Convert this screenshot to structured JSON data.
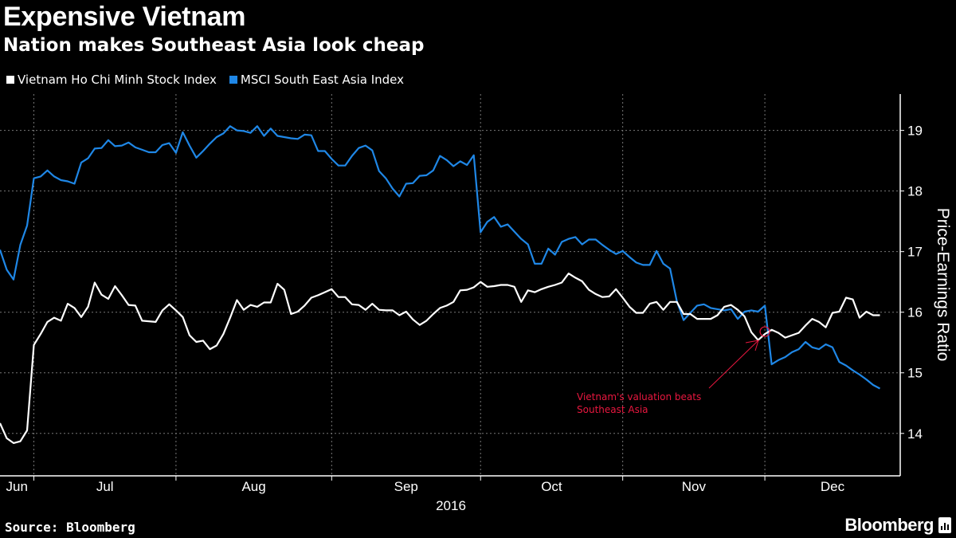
{
  "header": {
    "title": "Expensive Vietnam",
    "subtitle": "Nation makes Southeast Asia look cheap"
  },
  "footer": {
    "source": "Source: Bloomberg",
    "logo": "Bloomberg"
  },
  "colors": {
    "vietnam": "#ffffff",
    "msci": "#1f87e6",
    "annotation": "#e8173f",
    "grid": "#777777",
    "background": "#000000"
  },
  "chart_data": {
    "type": "line",
    "title": "Expensive Vietnam",
    "subtitle": "Nation makes Southeast Asia look cheap",
    "xlabel": "2016",
    "ylabel": "Price-Earnings Ratio",
    "x_unit": "trading day index",
    "xlim": [
      0,
      133
    ],
    "ylim": [
      13.3,
      19.6
    ],
    "y_axis_side": "right",
    "yticks": [
      14,
      15,
      16,
      17,
      18,
      19
    ],
    "month_boundaries": [
      5,
      26,
      49,
      71,
      92,
      113
    ],
    "month_labels": [
      "Jun",
      "Jul",
      "Aug",
      "Sep",
      "Oct",
      "Nov",
      "Dec"
    ],
    "grid": true,
    "legend_position": "top-left",
    "series": [
      {
        "name": "Vietnam Ho Chi Minh Stock Index",
        "color": "#ffffff",
        "values": [
          14.17,
          13.92,
          13.84,
          13.87,
          14.05,
          15.46,
          15.64,
          15.84,
          15.91,
          15.86,
          16.14,
          16.07,
          15.92,
          16.09,
          16.49,
          16.29,
          16.22,
          16.43,
          16.28,
          16.12,
          16.11,
          15.86,
          15.85,
          15.84,
          16.03,
          16.13,
          16.03,
          15.92,
          15.62,
          15.51,
          15.53,
          15.39,
          15.45,
          15.64,
          15.91,
          16.2,
          16.04,
          16.12,
          16.09,
          16.16,
          16.16,
          16.47,
          16.37,
          15.97,
          16.01,
          16.11,
          16.24,
          16.28,
          16.33,
          16.38,
          16.25,
          16.25,
          16.13,
          16.12,
          16.04,
          16.14,
          16.04,
          16.03,
          16.03,
          15.95,
          16.01,
          15.88,
          15.79,
          15.86,
          15.97,
          16.07,
          16.11,
          16.17,
          16.36,
          16.37,
          16.41,
          16.5,
          16.42,
          16.43,
          16.45,
          16.45,
          16.42,
          16.17,
          16.36,
          16.33,
          16.38,
          16.42,
          16.45,
          16.49,
          16.64,
          16.57,
          16.51,
          16.37,
          16.3,
          16.25,
          16.26,
          16.38,
          16.24,
          16.09,
          15.99,
          15.99,
          16.14,
          16.17,
          16.04,
          16.17,
          16.17,
          15.97,
          15.97,
          15.89,
          15.89,
          15.89,
          15.95,
          16.09,
          16.12,
          16.04,
          15.93,
          15.67,
          15.54,
          15.64,
          15.71,
          15.66,
          15.58,
          15.62,
          15.66,
          15.78,
          15.89,
          15.84,
          15.75,
          15.99,
          16.01,
          16.24,
          16.21,
          15.91,
          16.01,
          15.95,
          15.95
        ]
      },
      {
        "name": "MSCI South East Asia Index",
        "color": "#1f87e6",
        "values": [
          17.03,
          16.7,
          16.54,
          17.11,
          17.43,
          18.21,
          18.24,
          18.34,
          18.24,
          18.18,
          18.16,
          18.12,
          18.47,
          18.54,
          18.7,
          18.71,
          18.84,
          18.74,
          18.75,
          18.8,
          18.72,
          18.68,
          18.64,
          18.64,
          18.76,
          18.79,
          18.63,
          18.97,
          18.75,
          18.55,
          18.66,
          18.78,
          18.89,
          18.95,
          19.07,
          19.0,
          18.99,
          18.96,
          19.07,
          18.91,
          19.03,
          18.91,
          18.89,
          18.87,
          18.86,
          18.93,
          18.92,
          18.66,
          18.66,
          18.53,
          18.42,
          18.42,
          18.58,
          18.71,
          18.75,
          18.67,
          18.33,
          18.21,
          18.04,
          17.91,
          18.12,
          18.13,
          18.25,
          18.26,
          18.34,
          18.58,
          18.51,
          18.41,
          18.49,
          18.43,
          18.59,
          17.32,
          17.49,
          17.57,
          17.41,
          17.45,
          17.33,
          17.21,
          17.12,
          16.8,
          16.8,
          17.05,
          16.95,
          17.16,
          17.21,
          17.24,
          17.12,
          17.2,
          17.2,
          17.11,
          17.03,
          16.96,
          17.01,
          16.91,
          16.82,
          16.78,
          16.78,
          17.01,
          16.8,
          16.72,
          16.18,
          15.87,
          15.99,
          16.11,
          16.13,
          16.07,
          16.05,
          16.03,
          16.05,
          15.89,
          16.01,
          16.03,
          16.01,
          16.11,
          15.14,
          15.21,
          15.26,
          15.34,
          15.39,
          15.51,
          15.42,
          15.39,
          15.47,
          15.42,
          15.18,
          15.12,
          15.04,
          14.97,
          14.89,
          14.8,
          14.74
        ]
      }
    ],
    "annotation": {
      "text_line1": "Vietnam's valuation beats",
      "text_line2": "Southeast Asia",
      "x": 113,
      "y": 15.68
    }
  }
}
